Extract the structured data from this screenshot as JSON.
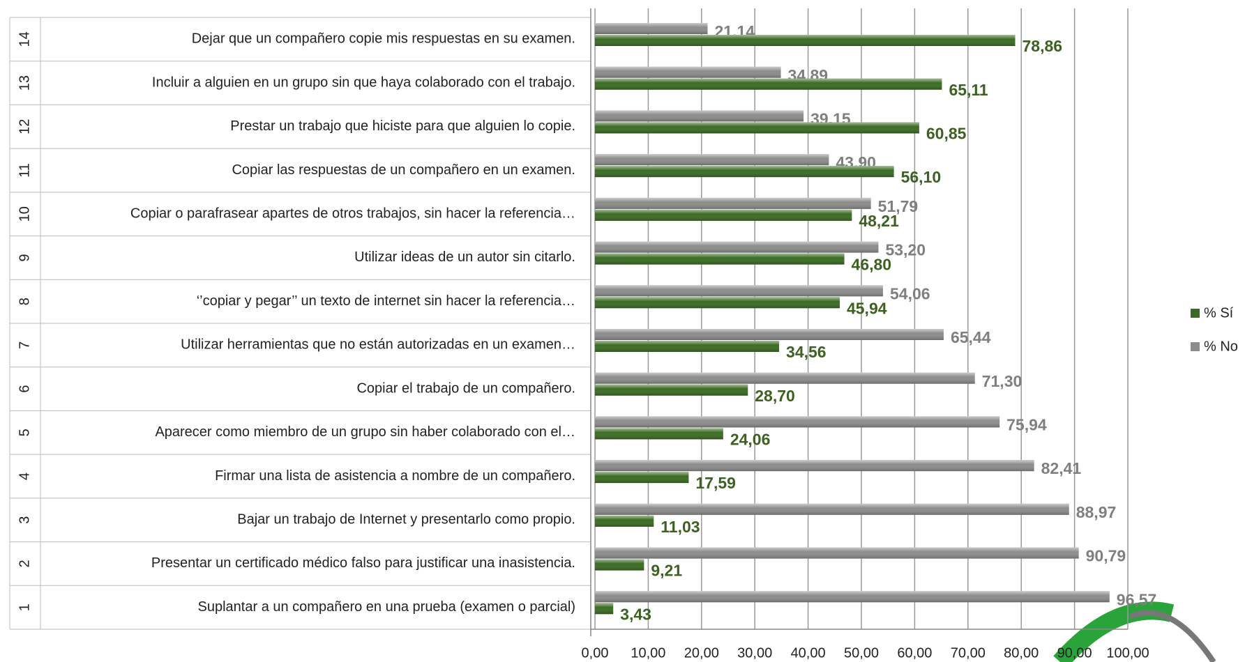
{
  "chart_data": {
    "type": "hbar",
    "category_ids": [
      "1",
      "2",
      "3",
      "4",
      "5",
      "6",
      "7",
      "8",
      "9",
      "10",
      "11",
      "12",
      "13",
      "14"
    ],
    "categories": [
      "Suplantar a un compañero en una prueba (examen o parcial)",
      "Presentar un certificado médico falso para justificar una inasistencia.",
      "Bajar un trabajo de Internet y presentarlo como propio.",
      "Firmar una lista de asistencia a nombre de un compañero.",
      "Aparecer como miembro de un grupo sin haber colaborado con el…",
      "Copiar el trabajo de un compañero.",
      "Utilizar herramientas que no están autorizadas en un examen…",
      "‘’copiar y pegar’’ un texto de internet sin hacer la referencia…",
      "Utilizar ideas de un autor sin citarlo.",
      "Copiar o parafrasear apartes de otros trabajos, sin hacer la referencia…",
      "Copiar las respuestas de un compañero en un examen.",
      "Prestar un trabajo que hiciste para que alguien lo copie.",
      "Incluir a alguien en un grupo sin que haya colaborado con el trabajo.",
      "Dejar que un compañero copie mis respuestas en su examen."
    ],
    "series": [
      {
        "name": "% No",
        "color": "#8c8c8c",
        "label_color": "#7f7f7f",
        "values": [
          96.57,
          90.79,
          88.97,
          82.41,
          75.94,
          71.3,
          65.44,
          54.06,
          53.2,
          51.79,
          43.9,
          39.15,
          34.89,
          21.14
        ],
        "value_labels": [
          "96,57",
          "90,79",
          "88,97",
          "82,41",
          "75,94",
          "71,30",
          "65,44",
          "54,06",
          "53,20",
          "51,79",
          "43,90",
          "39,15",
          "34,89",
          "21,14"
        ]
      },
      {
        "name": "% Sí",
        "color": "#3a6b22",
        "label_color": "#3d6120",
        "values": [
          3.43,
          9.21,
          11.03,
          17.59,
          24.06,
          28.7,
          34.56,
          45.94,
          46.8,
          48.21,
          56.1,
          60.85,
          65.11,
          78.86
        ],
        "value_labels": [
          "3,43",
          "9,21",
          "11,03",
          "17,59",
          "24,06",
          "28,70",
          "34,56",
          "45,94",
          "46,80",
          "48,21",
          "56,10",
          "60,85",
          "65,11",
          "78,86"
        ]
      }
    ],
    "xlim": [
      0,
      100
    ],
    "xticks": [
      {
        "value": 0,
        "label": "0,00"
      },
      {
        "value": 10,
        "label": "10,00"
      },
      {
        "value": 20,
        "label": "20,00"
      },
      {
        "value": 30,
        "label": "30,00"
      },
      {
        "value": 40,
        "label": "40,00"
      },
      {
        "value": 50,
        "label": "50,00"
      },
      {
        "value": 60,
        "label": "60,00"
      },
      {
        "value": 70,
        "label": "70,00"
      },
      {
        "value": 80,
        "label": "80,00"
      },
      {
        "value": 90,
        "label": "90,00"
      },
      {
        "value": 100,
        "label": "100,00"
      }
    ],
    "grid": true,
    "legend": "right"
  }
}
